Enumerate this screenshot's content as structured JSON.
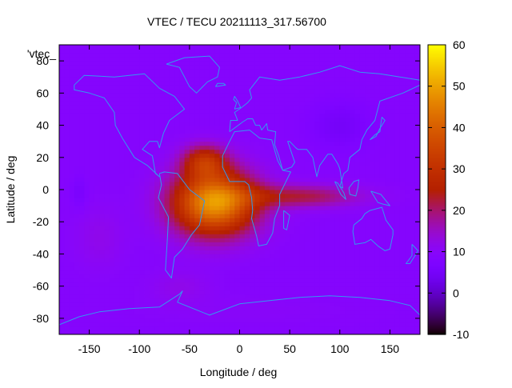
{
  "chart_data": {
    "type": "heatmap",
    "title": "VTEC / TECU 20211113_317.56700",
    "xlabel": "Longitude / deg",
    "ylabel": "Latitude / deg",
    "xlim": [
      -180,
      180
    ],
    "ylim": [
      -90,
      90
    ],
    "xticks": [
      -150,
      -100,
      -50,
      0,
      50,
      100,
      150
    ],
    "yticks": [
      -80,
      -60,
      -40,
      -20,
      0,
      20,
      40,
      60,
      80
    ],
    "colorbar": {
      "range": [
        -10,
        60
      ],
      "ticks": [
        -10,
        0,
        10,
        20,
        30,
        40,
        50,
        60
      ],
      "palette": "gnuplot-pm3d"
    },
    "background_tecu": 9,
    "grid": false,
    "legend_entry": "'vtec_",
    "blobs": [
      {
        "lon": -25,
        "lat": -8,
        "slon": 42,
        "slat": 20,
        "amp": 40
      },
      {
        "lon": -35,
        "lat": 18,
        "slon": 22,
        "slat": 10,
        "amp": 18
      },
      {
        "lon": 60,
        "lat": -4,
        "slon": 60,
        "slat": 7,
        "amp": 13
      },
      {
        "lon": -140,
        "lat": -30,
        "slon": 25,
        "slat": 20,
        "amp": 3
      },
      {
        "lon": 100,
        "lat": 40,
        "slon": 30,
        "slat": 15,
        "amp": -4
      },
      {
        "lon": -160,
        "lat": -2,
        "slon": 8,
        "slat": 10,
        "amp": -3
      },
      {
        "lon": 0,
        "lat": -75,
        "slon": 120,
        "slat": 10,
        "amp": 1
      },
      {
        "lon": -60,
        "lat": -60,
        "slon": 30,
        "slat": 10,
        "amp": 3
      }
    ],
    "coastlines": [
      {
        "name": "south-america",
        "points": [
          [
            -80,
            10
          ],
          [
            -75,
            11
          ],
          [
            -62,
            10
          ],
          [
            -50,
            0
          ],
          [
            -35,
            -7
          ],
          [
            -40,
            -22
          ],
          [
            -48,
            -28
          ],
          [
            -57,
            -37
          ],
          [
            -65,
            -42
          ],
          [
            -68,
            -55
          ],
          [
            -74,
            -50
          ],
          [
            -72,
            -30
          ],
          [
            -71,
            -17
          ],
          [
            -81,
            -5
          ],
          [
            -78,
            3
          ],
          [
            -80,
            10
          ]
        ]
      },
      {
        "name": "north-america",
        "points": [
          [
            -165,
            65
          ],
          [
            -155,
            71
          ],
          [
            -125,
            70
          ],
          [
            -95,
            72
          ],
          [
            -80,
            63
          ],
          [
            -65,
            58
          ],
          [
            -55,
            50
          ],
          [
            -70,
            43
          ],
          [
            -76,
            35
          ],
          [
            -80,
            26
          ],
          [
            -82,
            30
          ],
          [
            -90,
            30
          ],
          [
            -97,
            25
          ],
          [
            -87,
            21
          ],
          [
            -84,
            10
          ],
          [
            -80,
            8
          ],
          [
            -92,
            15
          ],
          [
            -105,
            20
          ],
          [
            -117,
            32
          ],
          [
            -124,
            40
          ],
          [
            -125,
            48
          ],
          [
            -135,
            57
          ],
          [
            -150,
            60
          ],
          [
            -165,
            62
          ],
          [
            -165,
            65
          ]
        ]
      },
      {
        "name": "africa",
        "points": [
          [
            -17,
            21
          ],
          [
            -17,
            14
          ],
          [
            -10,
            5
          ],
          [
            5,
            5
          ],
          [
            9,
            3
          ],
          [
            12,
            -5
          ],
          [
            13,
            -13
          ],
          [
            12,
            -18
          ],
          [
            17,
            -29
          ],
          [
            19,
            -35
          ],
          [
            27,
            -34
          ],
          [
            33,
            -27
          ],
          [
            35,
            -18
          ],
          [
            40,
            -10
          ],
          [
            40,
            -3
          ],
          [
            51,
            11
          ],
          [
            43,
            12
          ],
          [
            38,
            18
          ],
          [
            32,
            31
          ],
          [
            20,
            32
          ],
          [
            10,
            37
          ],
          [
            -5,
            36
          ],
          [
            -10,
            30
          ],
          [
            -17,
            21
          ]
        ]
      },
      {
        "name": "eurasia",
        "points": [
          [
            -10,
            36
          ],
          [
            -9,
            43
          ],
          [
            -2,
            43
          ],
          [
            -5,
            48
          ],
          [
            2,
            51
          ],
          [
            8,
            54
          ],
          [
            12,
            57
          ],
          [
            10,
            62
          ],
          [
            20,
            70
          ],
          [
            40,
            68
          ],
          [
            60,
            70
          ],
          [
            80,
            73
          ],
          [
            100,
            77
          ],
          [
            120,
            73
          ],
          [
            140,
            72
          ],
          [
            160,
            70
          ],
          [
            180,
            68
          ],
          [
            180,
            65
          ],
          [
            163,
            60
          ],
          [
            140,
            55
          ],
          [
            135,
            43
          ],
          [
            127,
            37
          ],
          [
            122,
            31
          ],
          [
            120,
            25
          ],
          [
            110,
            20
          ],
          [
            108,
            12
          ],
          [
            104,
            10
          ],
          [
            100,
            2
          ],
          [
            103,
            1
          ],
          [
            100,
            13
          ],
          [
            98,
            16
          ],
          [
            92,
            22
          ],
          [
            88,
            22
          ],
          [
            80,
            15
          ],
          [
            77,
            8
          ],
          [
            73,
            20
          ],
          [
            67,
            25
          ],
          [
            58,
            25
          ],
          [
            56,
            26
          ],
          [
            50,
            30
          ],
          [
            48,
            30
          ],
          [
            55,
            17
          ],
          [
            52,
            14
          ],
          [
            43,
            12
          ],
          [
            39,
            21
          ],
          [
            35,
            28
          ],
          [
            36,
            36
          ],
          [
            28,
            37
          ],
          [
            27,
            41
          ],
          [
            22,
            37
          ],
          [
            20,
            40
          ],
          [
            16,
            40
          ],
          [
            13,
            44
          ],
          [
            8,
            44
          ],
          [
            3,
            42
          ],
          [
            -10,
            36
          ]
        ]
      },
      {
        "name": "australia",
        "points": [
          [
            114,
            -22
          ],
          [
            113,
            -26
          ],
          [
            115,
            -34
          ],
          [
            125,
            -33
          ],
          [
            131,
            -31
          ],
          [
            138,
            -35
          ],
          [
            145,
            -38
          ],
          [
            150,
            -37
          ],
          [
            153,
            -28
          ],
          [
            153,
            -25
          ],
          [
            146,
            -19
          ],
          [
            142,
            -11
          ],
          [
            136,
            -12
          ],
          [
            130,
            -13
          ],
          [
            125,
            -15
          ],
          [
            122,
            -18
          ],
          [
            114,
            -22
          ]
        ]
      },
      {
        "name": "greenland",
        "points": [
          [
            -73,
            78
          ],
          [
            -55,
            82
          ],
          [
            -30,
            83
          ],
          [
            -20,
            76
          ],
          [
            -22,
            70
          ],
          [
            -32,
            67
          ],
          [
            -43,
            60
          ],
          [
            -50,
            64
          ],
          [
            -55,
            70
          ],
          [
            -60,
            76
          ],
          [
            -73,
            78
          ]
        ]
      },
      {
        "name": "madagascar",
        "points": [
          [
            44,
            -13
          ],
          [
            50,
            -16
          ],
          [
            47,
            -25
          ],
          [
            44,
            -24
          ],
          [
            44,
            -13
          ]
        ]
      },
      {
        "name": "antarctica",
        "points": [
          [
            -180,
            -84
          ],
          [
            -160,
            -79
          ],
          [
            -140,
            -76
          ],
          [
            -110,
            -74
          ],
          [
            -80,
            -73
          ],
          [
            -60,
            -65
          ],
          [
            -57,
            -63
          ],
          [
            -62,
            -70
          ],
          [
            -30,
            -78
          ],
          [
            0,
            -71
          ],
          [
            30,
            -69
          ],
          [
            60,
            -67
          ],
          [
            90,
            -66
          ],
          [
            120,
            -67
          ],
          [
            150,
            -69
          ],
          [
            170,
            -72
          ],
          [
            180,
            -78
          ]
        ]
      },
      {
        "name": "borneo",
        "points": [
          [
            109,
            1
          ],
          [
            114,
            5
          ],
          [
            119,
            6
          ],
          [
            118,
            1
          ],
          [
            116,
            -4
          ],
          [
            110,
            -3
          ],
          [
            109,
            1
          ]
        ]
      },
      {
        "name": "sumatra",
        "points": [
          [
            95,
            5
          ],
          [
            98,
            4
          ],
          [
            104,
            -2
          ],
          [
            106,
            -6
          ],
          [
            101,
            -3
          ],
          [
            95,
            5
          ]
        ]
      },
      {
        "name": "new-guinea",
        "points": [
          [
            131,
            -1
          ],
          [
            141,
            -3
          ],
          [
            150,
            -10
          ],
          [
            143,
            -9
          ],
          [
            138,
            -8
          ],
          [
            131,
            -1
          ]
        ]
      },
      {
        "name": "japan",
        "points": [
          [
            130,
            31
          ],
          [
            135,
            34
          ],
          [
            140,
            36
          ],
          [
            141,
            41
          ],
          [
            142,
            45
          ],
          [
            145,
            43
          ],
          [
            140,
            38
          ],
          [
            136,
            33
          ],
          [
            130,
            31
          ]
        ]
      },
      {
        "name": "uk",
        "points": [
          [
            -5,
            50
          ],
          [
            1,
            51
          ],
          [
            -2,
            55
          ],
          [
            -5,
            58
          ],
          [
            -6,
            56
          ],
          [
            -3,
            54
          ],
          [
            -5,
            50
          ]
        ]
      },
      {
        "name": "new-zealand",
        "points": [
          [
            172,
            -34
          ],
          [
            178,
            -38
          ],
          [
            175,
            -41
          ],
          [
            170,
            -46
          ],
          [
            166,
            -46
          ],
          [
            172,
            -41
          ],
          [
            172,
            -34
          ]
        ]
      },
      {
        "name": "iceland",
        "points": [
          [
            -24,
            64
          ],
          [
            -14,
            65
          ],
          [
            -16,
            66
          ],
          [
            -22,
            66
          ],
          [
            -24,
            64
          ]
        ]
      }
    ]
  }
}
